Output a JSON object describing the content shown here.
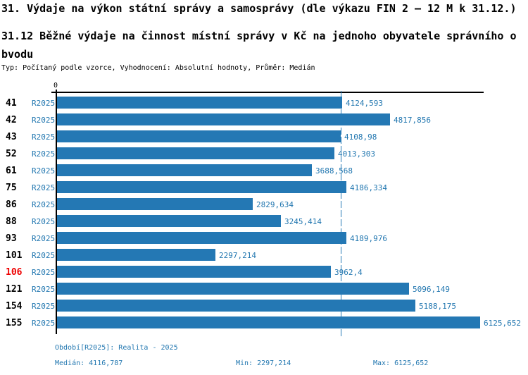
{
  "header": {
    "title": "31. Výdaje na výkon státní správy a samosprávy (dle výkazu FIN 2 – 12 M k 31.12.)",
    "subtitle": "31.12 Běžné výdaje na činnost místní správy v Kč na jednoho obyvatele správního obvodu",
    "meta_line": "Typ: Počítaný podle vzorce, Vyhodnocení: Absolutní hodnoty, Průměr: Medián"
  },
  "colors": {
    "bar": "#2478b4",
    "text_blue": "#2277b0",
    "highlight_red": "#ee0000",
    "axis_black": "#000000"
  },
  "chart_data": {
    "type": "bar",
    "orientation": "horizontal",
    "axis_zero_label": "0",
    "xlim": [
      0,
      6300
    ],
    "series_name": "R2025",
    "median": 4116.787,
    "highlighted_category": "106",
    "categories": [
      "41",
      "42",
      "43",
      "52",
      "61",
      "75",
      "86",
      "88",
      "93",
      "101",
      "106",
      "121",
      "154",
      "155"
    ],
    "rows": [
      {
        "id": "41",
        "series": "R2025",
        "value": 4124.593,
        "value_label": "4124,593",
        "highlight": false
      },
      {
        "id": "42",
        "series": "R2025",
        "value": 4817.856,
        "value_label": "4817,856",
        "highlight": false
      },
      {
        "id": "43",
        "series": "R2025",
        "value": 4108.98,
        "value_label": "4108,98",
        "highlight": false
      },
      {
        "id": "52",
        "series": "R2025",
        "value": 4013.303,
        "value_label": "4013,303",
        "highlight": false
      },
      {
        "id": "61",
        "series": "R2025",
        "value": 3688.568,
        "value_label": "3688,568",
        "highlight": false
      },
      {
        "id": "75",
        "series": "R2025",
        "value": 4186.334,
        "value_label": "4186,334",
        "highlight": false
      },
      {
        "id": "86",
        "series": "R2025",
        "value": 2829.634,
        "value_label": "2829,634",
        "highlight": false
      },
      {
        "id": "88",
        "series": "R2025",
        "value": 3245.414,
        "value_label": "3245,414",
        "highlight": false
      },
      {
        "id": "93",
        "series": "R2025",
        "value": 4189.976,
        "value_label": "4189,976",
        "highlight": false
      },
      {
        "id": "101",
        "series": "R2025",
        "value": 2297.214,
        "value_label": "2297,214",
        "highlight": false
      },
      {
        "id": "106",
        "series": "R2025",
        "value": 3962.4,
        "value_label": "3962,4",
        "highlight": true
      },
      {
        "id": "121",
        "series": "R2025",
        "value": 5096.149,
        "value_label": "5096,149",
        "highlight": false
      },
      {
        "id": "154",
        "series": "R2025",
        "value": 5188.175,
        "value_label": "5188,175",
        "highlight": false
      },
      {
        "id": "155",
        "series": "R2025",
        "value": 6125.652,
        "value_label": "6125,652",
        "highlight": false
      }
    ]
  },
  "footer": {
    "period_line": "Období[R2025]: Realita - 2025",
    "median_label": "Medián: 4116,787",
    "min_label": "Min: 2297,214",
    "max_label": "Max: 6125,652"
  }
}
